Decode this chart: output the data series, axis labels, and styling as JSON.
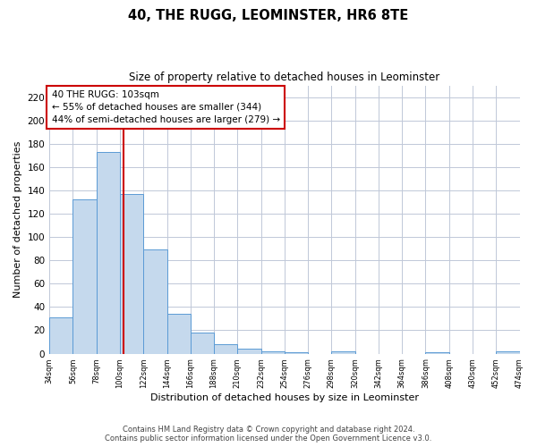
{
  "title": "40, THE RUGG, LEOMINSTER, HR6 8TE",
  "subtitle": "Size of property relative to detached houses in Leominster",
  "xlabel": "Distribution of detached houses by size in Leominster",
  "ylabel": "Number of detached properties",
  "bar_color": "#c5d9ed",
  "bar_edge_color": "#5b9bd5",
  "vline_color": "#cc0000",
  "vline_x": 103,
  "annotation_title": "40 THE RUGG: 103sqm",
  "annotation_line1": "← 55% of detached houses are smaller (344)",
  "annotation_line2": "44% of semi-detached houses are larger (279) →",
  "bin_edges": [
    34,
    56,
    78,
    100,
    122,
    144,
    166,
    188,
    210,
    232,
    254,
    276,
    298,
    320,
    342,
    364,
    386,
    408,
    430,
    452,
    474
  ],
  "bar_heights": [
    31,
    132,
    173,
    137,
    89,
    34,
    18,
    8,
    4,
    2,
    1,
    0,
    2,
    0,
    0,
    0,
    1,
    0,
    0,
    2
  ],
  "ylim": [
    0,
    230
  ],
  "yticks": [
    0,
    20,
    40,
    60,
    80,
    100,
    120,
    140,
    160,
    180,
    200,
    220
  ],
  "footer_line1": "Contains HM Land Registry data © Crown copyright and database right 2024.",
  "footer_line2": "Contains public sector information licensed under the Open Government Licence v3.0.",
  "bg_color": "#ffffff",
  "grid_color": "#c0c8d8"
}
